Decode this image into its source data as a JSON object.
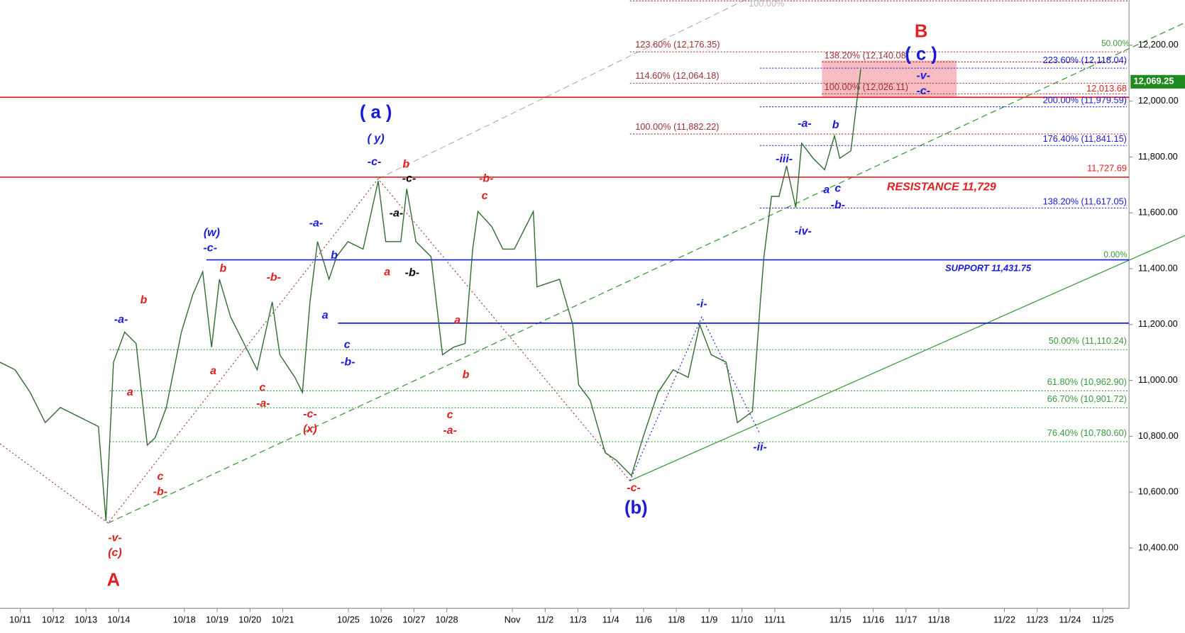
{
  "chart_data": {
    "type": "line",
    "color": "#2e6b2e",
    "xlim": [
      -0.62,
      33.8
    ],
    "ylim": [
      10184,
      12362
    ],
    "xticks": [
      {
        "value": 0,
        "label": "10/11"
      },
      {
        "value": 1,
        "label": "10/12"
      },
      {
        "value": 2,
        "label": "10/13"
      },
      {
        "value": 3,
        "label": "10/14"
      },
      {
        "value": 5,
        "label": "10/18"
      },
      {
        "value": 6,
        "label": "10/19"
      },
      {
        "value": 7,
        "label": "10/20"
      },
      {
        "value": 8,
        "label": "10/21"
      },
      {
        "value": 10,
        "label": "10/25"
      },
      {
        "value": 11,
        "label": "10/26"
      },
      {
        "value": 12,
        "label": "10/27"
      },
      {
        "value": 13,
        "label": "10/28"
      },
      {
        "value": 15,
        "label": "Nov"
      },
      {
        "value": 16,
        "label": "11/2"
      },
      {
        "value": 17,
        "label": "11/3"
      },
      {
        "value": 18,
        "label": "11/4"
      },
      {
        "value": 19,
        "label": "11/6"
      },
      {
        "value": 20,
        "label": "11/8"
      },
      {
        "value": 21,
        "label": "11/9"
      },
      {
        "value": 22,
        "label": "11/10"
      },
      {
        "value": 23,
        "label": "11/11"
      },
      {
        "value": 25,
        "label": "11/15"
      },
      {
        "value": 26,
        "label": "11/16"
      },
      {
        "value": 27,
        "label": "11/17"
      },
      {
        "value": 28,
        "label": "11/18"
      },
      {
        "value": 30,
        "label": "11/22"
      },
      {
        "value": 31,
        "label": "11/23"
      },
      {
        "value": 32,
        "label": "11/24"
      },
      {
        "value": 33,
        "label": "11/25"
      }
    ],
    "yticks": [
      {
        "value": 10400,
        "label": "10,400.00"
      },
      {
        "value": 10600,
        "label": "10,600.00"
      },
      {
        "value": 10800,
        "label": "10,800.00"
      },
      {
        "value": 11000,
        "label": "11,000.00"
      },
      {
        "value": 11200,
        "label": "11,200.00"
      },
      {
        "value": 11400,
        "label": "11,400.00"
      },
      {
        "value": 11600,
        "label": "11,600.00"
      },
      {
        "value": 11800,
        "label": "11,800.00"
      },
      {
        "value": 12000,
        "label": "12,000.00"
      },
      {
        "value": 12200,
        "label": "12,200.00"
      }
    ],
    "x": [
      -0.62,
      -0.16,
      0.3,
      0.76,
      1.22,
      1.68,
      2.38,
      2.61,
      2.84,
      3.18,
      3.53,
      3.87,
      4.11,
      4.45,
      4.91,
      5.26,
      5.56,
      5.83,
      6.07,
      6.41,
      6.76,
      7.22,
      7.68,
      7.91,
      8.37,
      8.6,
      8.83,
      9.06,
      9.41,
      9.64,
      9.99,
      10.45,
      10.91,
      11.14,
      11.6,
      11.78,
      12.06,
      12.52,
      12.87,
      13.21,
      13.56,
      13.79,
      13.95,
      14.37,
      14.71,
      15.06,
      15.64,
      15.75,
      16.44,
      16.84,
      17.02,
      17.37,
      17.83,
      18.17,
      18.63,
      18.98,
      19.44,
      19.9,
      20.36,
      20.71,
      21.06,
      21.52,
      21.86,
      22.32,
      22.56,
      22.67,
      22.9,
      23.13,
      23.36,
      23.64,
      23.82,
      24.17,
      24.52,
      24.82,
      24.98,
      25.32,
      25.62
    ],
    "values": [
      11065,
      11038,
      10957,
      10849,
      10903,
      10876,
      10835,
      10497,
      11065,
      11173,
      11132,
      10768,
      10795,
      10903,
      11173,
      11308,
      11389,
      11119,
      11362,
      11227,
      11146,
      11038,
      11281,
      11092,
      11011,
      10957,
      11281,
      11497,
      11362,
      11443,
      11497,
      11470,
      11714,
      11497,
      11497,
      11686,
      11497,
      11443,
      11092,
      11119,
      11132,
      11470,
      11605,
      11551,
      11470,
      11470,
      11605,
      11335,
      11362,
      11200,
      10984,
      10930,
      10741,
      10714,
      10659,
      10795,
      10957,
      11038,
      11011,
      11200,
      11092,
      11065,
      10849,
      10889,
      11281,
      11443,
      11659,
      11659,
      11768,
      11619,
      11849,
      11795,
      11754,
      11876,
      11795,
      11822,
      12114
    ],
    "last_price": {
      "value": 12069.25,
      "label": "12,069.25"
    },
    "levels": [
      {
        "label": "12,013.68",
        "value": 12013.68,
        "color": "#e02020",
        "style": "solid"
      },
      {
        "label": "11,727.69",
        "value": 11727.69,
        "color": "#e02020",
        "style": "solid"
      },
      {
        "label": "SUPPORT 11,431.75",
        "value": 11431.75,
        "color": "#1a1adb",
        "style": "solid"
      },
      {
        "value": 11205,
        "color": "#1a1adb",
        "style": "solid"
      },
      {
        "label": "50.00% (11,110.24)",
        "value": 11110.24,
        "color": "#3a9a3a",
        "style": "dotted"
      },
      {
        "label": "61.80% (10,962.90)",
        "value": 10962.9,
        "color": "#3a9a3a",
        "style": "dotted"
      },
      {
        "label": "66.70% (10,901.72)",
        "value": 10901.72,
        "color": "#3a9a3a",
        "style": "dotted"
      },
      {
        "label": "76.40% (10,780.60)",
        "value": 10780.6,
        "color": "#3a9a3a",
        "style": "dotted"
      },
      {
        "label": "100.00%",
        "value": 12359,
        "color": "#a03030",
        "style": "dotted"
      },
      {
        "label": "123.60% (12,176.35)",
        "value": 12176.35,
        "color": "#a03030",
        "style": "dotted"
      },
      {
        "label": "114.60% (12,064.18)",
        "value": 12064.18,
        "color": "#a03030",
        "style": "dotted"
      },
      {
        "label": "100.00% (11,882.22)",
        "value": 11882.22,
        "color": "#a03030",
        "style": "dotted"
      },
      {
        "label": "138.20% (12,140.08)",
        "value": 12140.08,
        "color": "#a03030",
        "style": "dotted"
      },
      {
        "label": "100.00% (12,026.11)",
        "value": 12026.11,
        "color": "#a03030",
        "style": "dotted"
      },
      {
        "label": "223.60% (12,118.04)",
        "value": 12118.04,
        "color": "#1a1adb",
        "style": "dotted"
      },
      {
        "label": "200.00% (11,979.59)",
        "value": 11979.59,
        "color": "#1a1adb",
        "style": "dotted"
      },
      {
        "label": "176.40% (11,841.15)",
        "value": 11841.15,
        "color": "#1a1adb",
        "style": "dotted"
      },
      {
        "label": "138.20% (11,617.05)",
        "value": 11617.05,
        "color": "#1a1adb",
        "style": "dotted"
      }
    ],
    "annotations": [
      "A",
      "-v-",
      "(c)",
      "-a-",
      "b",
      "a",
      "c",
      "-b-",
      "(w)",
      "-c-",
      "b",
      "a",
      "-b-",
      "c",
      "-a-",
      "-c-",
      "(x)",
      "-a-",
      "b",
      "a",
      "c",
      "-b-",
      "( a )",
      "( y)",
      "-c-",
      "b",
      "-c-",
      "-a-",
      "-b-",
      "a",
      "-b-",
      "c",
      "a",
      "b",
      "c",
      "-a-",
      "-c-",
      "(b)",
      "-i-",
      "-ii-",
      "-iii-",
      "-iv-",
      "-a-",
      "b",
      "a",
      "c",
      "-b-",
      "B",
      "( c )",
      "-v-",
      "-c-",
      "RESISTANCE 11,729",
      "50.00%",
      "0.00%"
    ]
  }
}
